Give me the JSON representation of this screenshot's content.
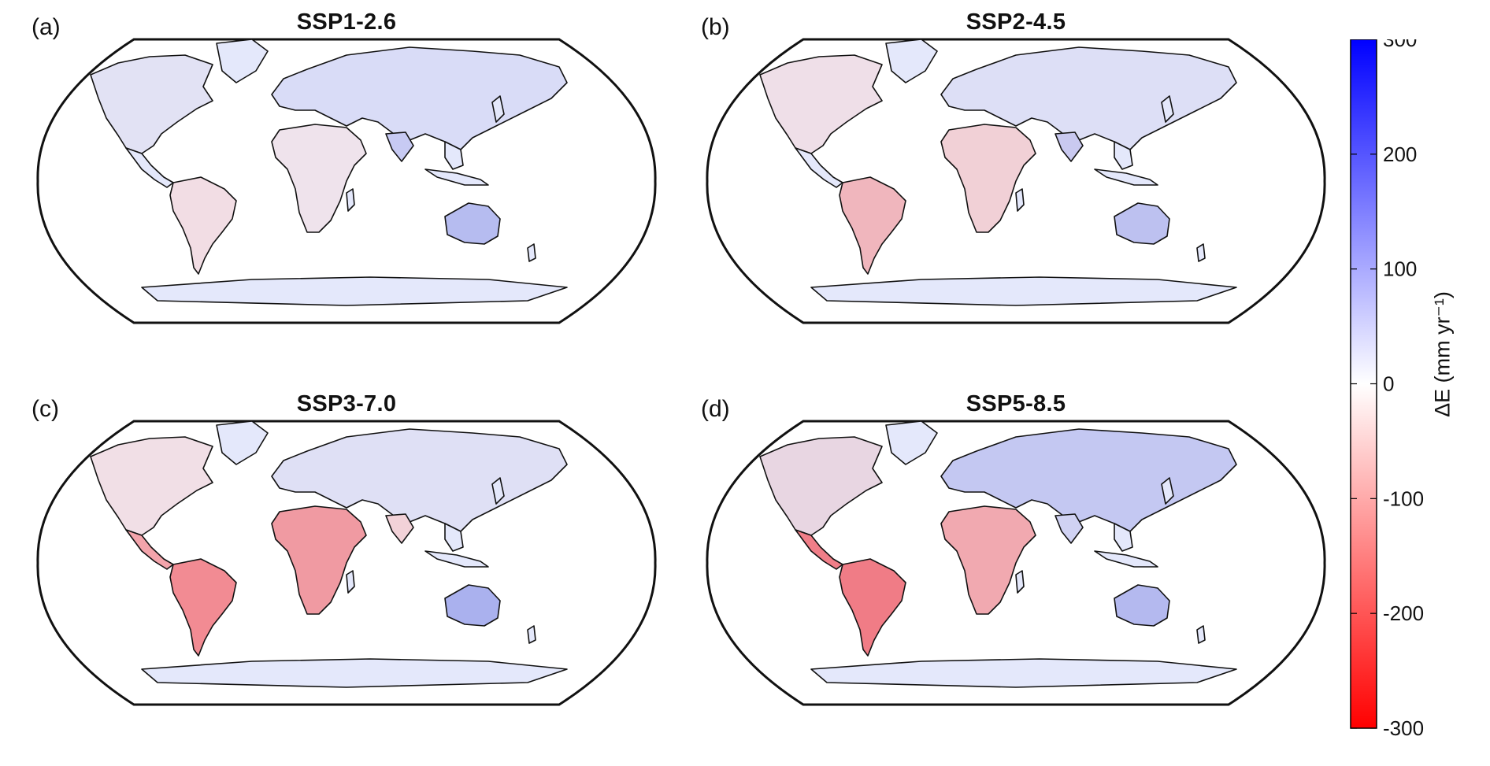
{
  "panels": [
    {
      "label": "(a)",
      "title": "SSP1-2.6"
    },
    {
      "label": "(b)",
      "title": "SSP2-4.5"
    },
    {
      "label": "(c)",
      "title": "SSP3-7.0"
    },
    {
      "label": "(d)",
      "title": "SSP5-8.5"
    }
  ],
  "colorbar": {
    "label": "ΔE (mm yr⁻¹)",
    "ticks": [
      "300",
      "200",
      "100",
      "0",
      "-100",
      "-200",
      "-300"
    ],
    "range": [
      -300,
      300
    ],
    "high_color": "#0000ff",
    "mid_color": "#ffffff",
    "low_color": "#ff0000"
  },
  "map": {
    "projection": "Robinson",
    "land_fill_default": "#e4e8fb"
  }
}
